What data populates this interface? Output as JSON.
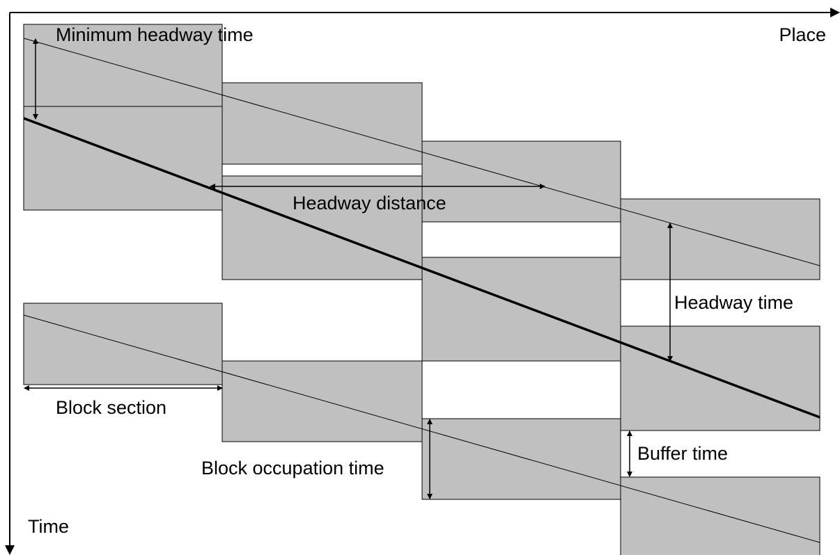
{
  "labels": {
    "minimum_headway_time": "Minimum headway time",
    "place": "Place",
    "headway_distance": "Headway distance",
    "headway_time": "Headway time",
    "block_section": "Block section",
    "block_occupation_time": "Block occupation time",
    "buffer_time": "Buffer time",
    "time": "Time"
  }
}
